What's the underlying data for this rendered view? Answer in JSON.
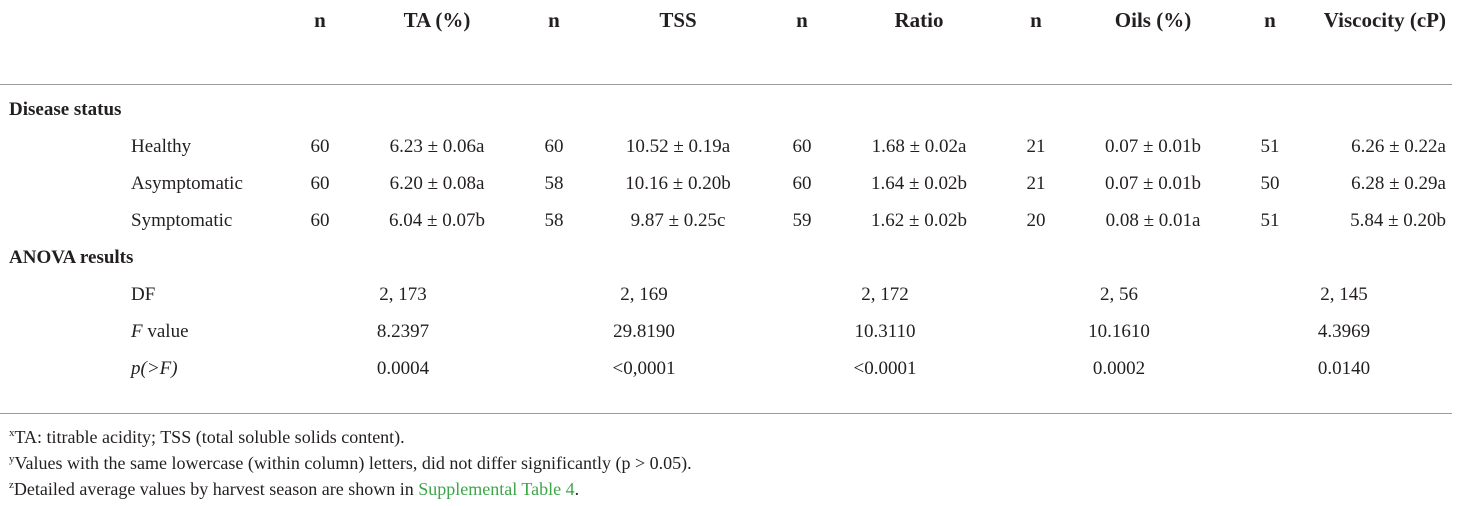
{
  "header": {
    "cols": [
      "",
      "n",
      "TA (%)",
      "n",
      "TSS",
      "n",
      "Ratio",
      "n",
      "Oils (%)",
      "n",
      "Viscocity (cP)"
    ]
  },
  "sections": {
    "disease": "Disease status",
    "anova": "ANOVA results"
  },
  "rows": [
    {
      "label": "Healthy",
      "cells": [
        "60",
        "6.23 ± 0.06a",
        "60",
        "10.52 ± 0.19a",
        "60",
        "1.68 ± 0.02a",
        "21",
        "0.07 ± 0.01b",
        "51",
        "6.26 ± 0.22a"
      ]
    },
    {
      "label": "Asymptomatic",
      "cells": [
        "60",
        "6.20 ± 0.08a",
        "58",
        "10.16 ± 0.20b",
        "60",
        "1.64 ± 0.02b",
        "21",
        "0.07 ± 0.01b",
        "50",
        "6.28 ± 0.29a"
      ]
    },
    {
      "label": "Symptomatic",
      "cells": [
        "60",
        "6.04 ± 0.07b",
        "58",
        "9.87 ± 0.25c",
        "59",
        "1.62 ± 0.02b",
        "20",
        "0.08 ± 0.01a",
        "51",
        "5.84 ± 0.20b"
      ]
    }
  ],
  "anova": [
    {
      "label_pre": "",
      "label_it": "",
      "label_post": "DF",
      "cells": [
        "2, 173",
        "2, 169",
        "2, 172",
        "2, 56",
        "2, 145"
      ]
    },
    {
      "label_pre": "",
      "label_it": "F",
      "label_post": " value",
      "cells": [
        "8.2397",
        "29.8190",
        "10.3110",
        "10.1610",
        "4.3969"
      ]
    },
    {
      "label_pre": "",
      "label_it": "p(>F)",
      "label_post": "",
      "cells": [
        "0.0004",
        "<0,0001",
        "<0.0001",
        "0.0002",
        "0.0140"
      ]
    }
  ],
  "footnotes": {
    "x_mark": "x",
    "x_text": "TA: titrable acidity; TSS (total soluble solids content).",
    "y_mark": "y",
    "y_text": "Values with the same lowercase (within column) letters, did not differ significantly (p > 0.05).",
    "z_mark": "z",
    "z_text_pre": "Detailed average values by harvest season are shown in ",
    "z_link": "Supplemental Table 4",
    "z_text_post": "."
  },
  "colors": {
    "text": "#231f20",
    "link": "#3ea54a",
    "rule": "#9a9a9a"
  }
}
